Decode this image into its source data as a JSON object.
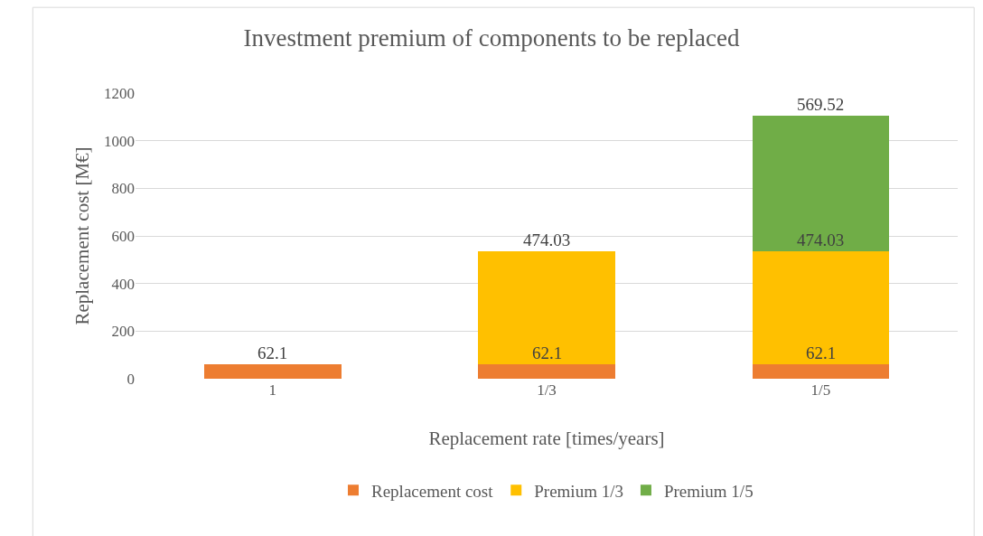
{
  "chart_data": {
    "type": "bar",
    "title": "Investment premium of components to be replaced",
    "xlabel": "Replacement rate [times/years]",
    "ylabel": "Replacement cost [M€]",
    "categories": [
      "1",
      "1/3",
      "1/5"
    ],
    "stacked": true,
    "series": [
      {
        "name": "Replacement cost",
        "color": "#ed7d31",
        "values": [
          62.1,
          62.1,
          62.1
        ]
      },
      {
        "name": "Premium 1/3",
        "color": "#ffc000",
        "values": [
          null,
          474.03,
          474.03
        ]
      },
      {
        "name": "Premium 1/5",
        "color": "#70ad47",
        "values": [
          null,
          null,
          569.52
        ]
      }
    ],
    "ylim": [
      0,
      1200
    ],
    "yticks": [
      0,
      200,
      400,
      600,
      800,
      1000,
      1200
    ],
    "grid": "y",
    "legend": "bottom",
    "data_labels": true
  }
}
